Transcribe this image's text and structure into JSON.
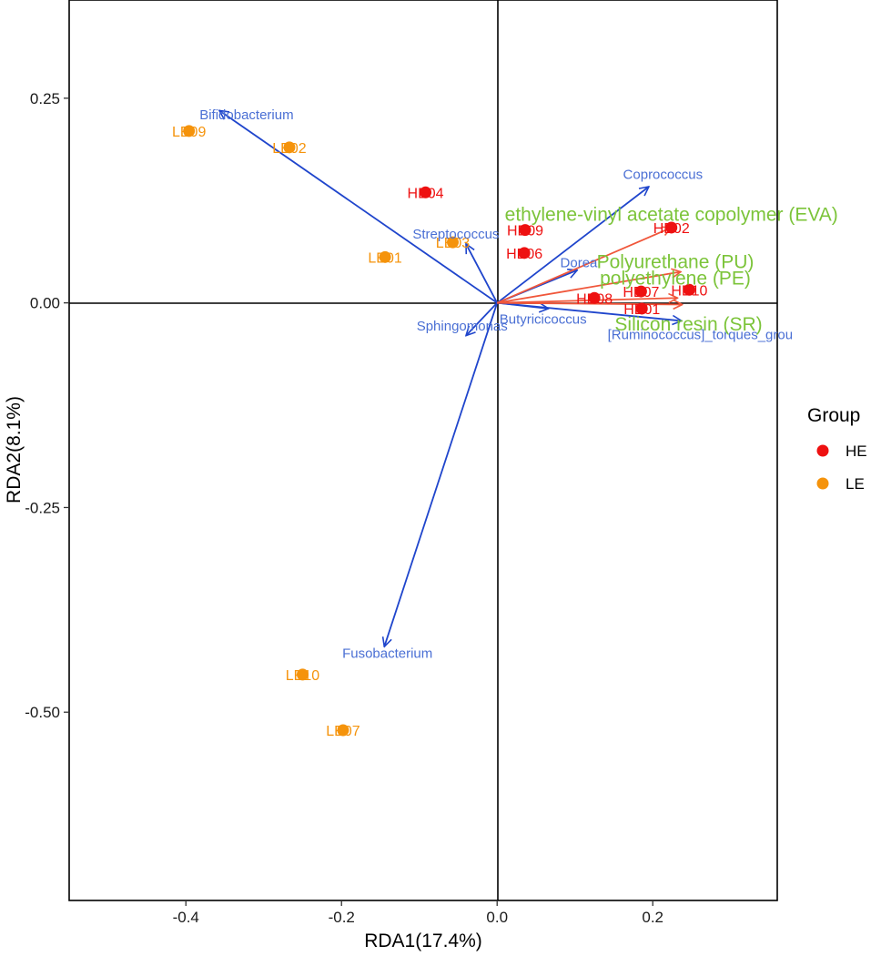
{
  "chart_data": {
    "type": "scatter",
    "subtype": "RDA biplot",
    "xlabel": "RDA1(17.4%)",
    "ylabel": "RDA2(8.1%)",
    "xlim": [
      -0.55,
      0.36
    ],
    "ylim": [
      -0.73,
      0.37
    ],
    "xticks": [
      -0.4,
      -0.2,
      0.0,
      0.2
    ],
    "xtick_labels": [
      "-0.4",
      "-0.2",
      "0.0",
      "0.2"
    ],
    "yticks": [
      0.25,
      0.0,
      -0.25,
      -0.5
    ],
    "ytick_labels": [
      "0.25",
      "0.00",
      "-0.25",
      "-0.50"
    ],
    "grid": false,
    "reference_lines": {
      "x": 0,
      "y": 0
    },
    "colors": {
      "HE": "#ee1111",
      "LE": "#f5930b",
      "species_arrow": "#1f45cc",
      "species_text": "#4a6fd4",
      "env_arrow": "#f0563a",
      "env_text": "#7cc43a",
      "axis": "#000000"
    },
    "legend": {
      "title": "Group",
      "position": "right",
      "entries": [
        {
          "name": "HE",
          "color": "#ee1111"
        },
        {
          "name": "LE",
          "color": "#f5930b"
        }
      ]
    },
    "samples": [
      {
        "label": "HE04",
        "group": "HE",
        "x": -0.092,
        "y": 0.135
      },
      {
        "label": "HE09",
        "group": "HE",
        "x": 0.036,
        "y": 0.089
      },
      {
        "label": "HE02",
        "group": "HE",
        "x": 0.224,
        "y": 0.092
      },
      {
        "label": "HE06",
        "group": "HE",
        "x": 0.035,
        "y": 0.061
      },
      {
        "label": "HE07",
        "group": "HE",
        "x": 0.185,
        "y": 0.014
      },
      {
        "label": "HE10",
        "group": "HE",
        "x": 0.247,
        "y": 0.016
      },
      {
        "label": "HE08",
        "group": "HE",
        "x": 0.125,
        "y": 0.006
      },
      {
        "label": "HE01",
        "group": "HE",
        "x": 0.186,
        "y": -0.007
      },
      {
        "label": "LE09",
        "group": "LE",
        "x": -0.396,
        "y": 0.21
      },
      {
        "label": "LE02",
        "group": "LE",
        "x": -0.267,
        "y": 0.19
      },
      {
        "label": "LE03",
        "group": "LE",
        "x": -0.057,
        "y": 0.074
      },
      {
        "label": "LE01",
        "group": "LE",
        "x": -0.144,
        "y": 0.056
      },
      {
        "label": "LE10",
        "group": "LE",
        "x": -0.25,
        "y": -0.454
      },
      {
        "label": "LE07",
        "group": "LE",
        "x": -0.198,
        "y": -0.522
      }
    ],
    "species_vectors": [
      {
        "name": "Bifidobacterium",
        "x": -0.357,
        "y": 0.235,
        "label_x": -0.322,
        "label_y": 0.23
      },
      {
        "name": "Coprococcus",
        "x": 0.195,
        "y": 0.142,
        "label_x": 0.213,
        "label_y": 0.157
      },
      {
        "name": "Streptococcus",
        "x": -0.04,
        "y": 0.072,
        "label_x": -0.053,
        "label_y": 0.084
      },
      {
        "name": "Dorea",
        "x": 0.103,
        "y": 0.04,
        "label_x": 0.105,
        "label_y": 0.049
      },
      {
        "name": "Butyricicoccus",
        "x": 0.066,
        "y": -0.007,
        "label_x": 0.059,
        "label_y": -0.02
      },
      {
        "name": "Sphingomonas",
        "x": -0.04,
        "y": -0.04,
        "label_x": -0.045,
        "label_y": -0.028
      },
      {
        "name": "[Ruminococcus]_torques_grou",
        "x": 0.237,
        "y": -0.022,
        "label_x": 0.261,
        "label_y": -0.039
      },
      {
        "name": "Fusobacterium",
        "x": -0.145,
        "y": -0.42,
        "label_x": -0.141,
        "label_y": -0.428
      }
    ],
    "env_vectors": [
      {
        "name": "ethylene-vinyl acetate copolymer (EVA)",
        "x": 0.224,
        "y": 0.092,
        "label_x": 0.224,
        "label_y": 0.108
      },
      {
        "name": "Polyurethane (PU)",
        "x": 0.236,
        "y": 0.038,
        "label_x": 0.229,
        "label_y": 0.05
      },
      {
        "name": "polyethylene (PE)",
        "x": 0.232,
        "y": 0.006,
        "label_x": 0.229,
        "label_y": 0.03
      },
      {
        "name": "Silicon resin (SR)",
        "x": 0.238,
        "y": -0.002,
        "label_x": 0.246,
        "label_y": -0.026
      }
    ]
  }
}
